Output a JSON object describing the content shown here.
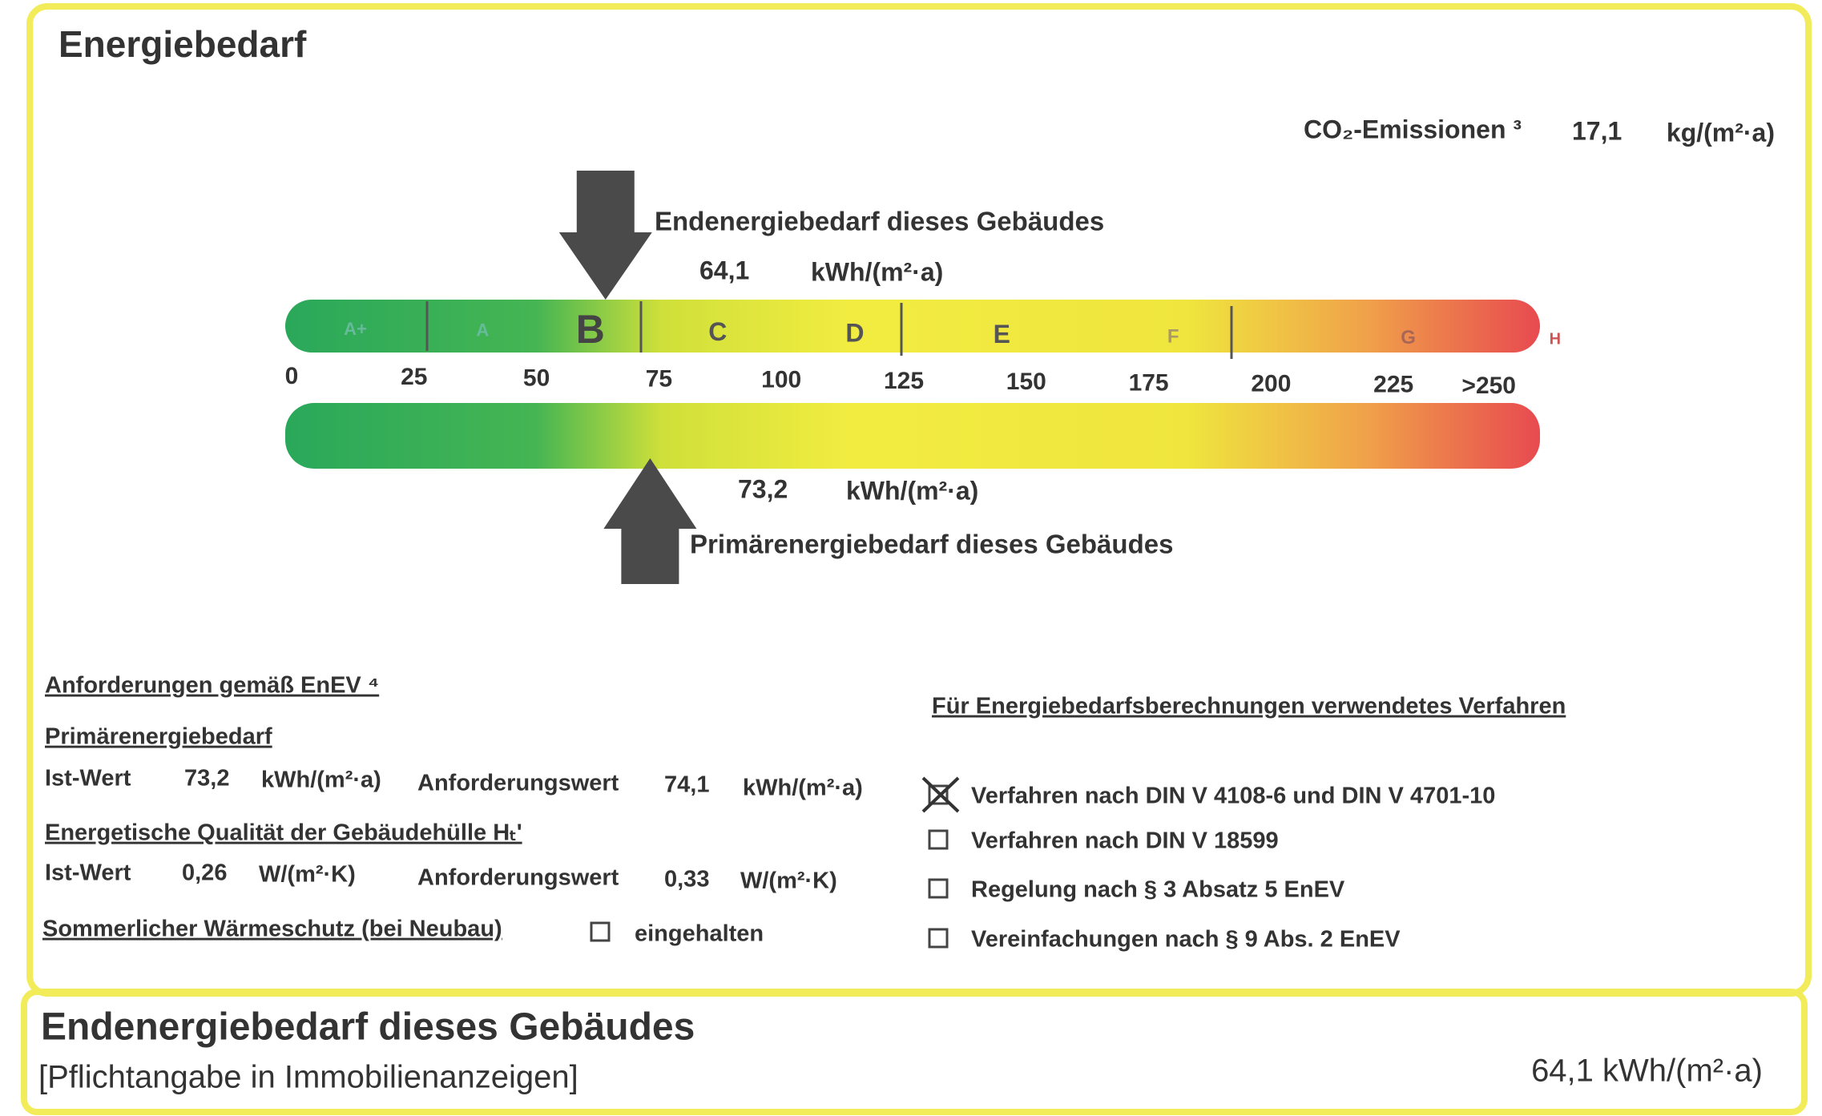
{
  "header": {
    "title": "Energiebedarf"
  },
  "co2": {
    "label": "CO₂-Emissionen ³",
    "value": "17,1",
    "unit": "kg/(m²·a)"
  },
  "scale": {
    "range": [
      0,
      250
    ],
    "ticks": [
      0,
      25,
      50,
      75,
      100,
      125,
      150,
      175,
      200,
      225,
      {
        "value": 250,
        "label": ">250"
      }
    ],
    "classes": [
      "A+",
      "A",
      "B",
      "C",
      "D",
      "E",
      "F",
      "G",
      "H"
    ]
  },
  "end_energy": {
    "label": "Endenergiebedarf dieses Gebäudes",
    "value": 64.1,
    "value_label": "64,1",
    "unit": "kWh/(m²·a)"
  },
  "primary_energy": {
    "label": "Primärenergiebedarf dieses Gebäudes",
    "value": 73.2,
    "value_label": "73,2",
    "unit": "kWh/(m²·a)"
  },
  "requirements": {
    "title": "Anforderungen gemäß EnEV ⁴",
    "primary": {
      "title": "Primärenergiebedarf",
      "actual_label": "Ist-Wert",
      "actual": "73,2",
      "actual_unit": "kWh/(m²·a)",
      "req_label": "Anforderungswert",
      "req": "74,1",
      "req_unit": "kWh/(m²·a)"
    },
    "envelope": {
      "title": "Energetische Qualität der Gebäudehülle Hₜ'",
      "actual_label": "Ist-Wert",
      "actual": "0,26",
      "actual_unit": "W/(m²·K)",
      "req_label": "Anforderungswert",
      "req": "0,33",
      "req_unit": "W/(m²·K)"
    },
    "summer": {
      "title": "Sommerlicher Wärmeschutz (bei Neubau)",
      "option": "eingehalten",
      "checked": false
    }
  },
  "method": {
    "title": "Für Energiebedarfsberechnungen verwendetes Verfahren",
    "options": [
      {
        "label": "Verfahren nach DIN V 4108-6 und DIN V 4701-10",
        "checked": true
      },
      {
        "label": "Verfahren nach DIN V 18599",
        "checked": false
      },
      {
        "label": "Regelung nach § 3 Absatz 5 EnEV",
        "checked": false
      },
      {
        "label": "Vereinfachungen nach § 9 Abs. 2 EnEV",
        "checked": false
      }
    ]
  },
  "footer": {
    "title": "Endenergiebedarf dieses Gebäudes",
    "note": "[Pflichtangabe in Immobilienanzeigen]",
    "value": "64,1 kWh/(m²·a)"
  }
}
